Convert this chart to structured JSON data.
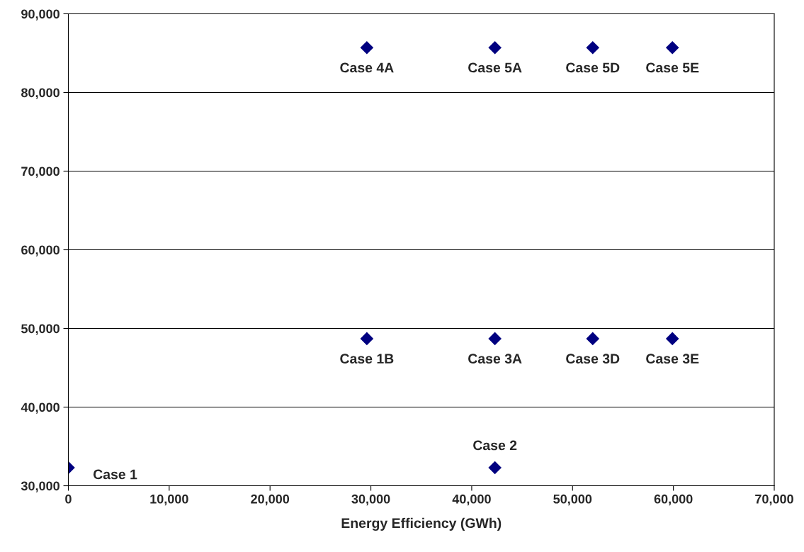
{
  "chart_data": {
    "type": "scatter",
    "xlabel": "Energy Efficiency (GWh)",
    "x": [
      0,
      42300,
      29600,
      42300,
      52000,
      59900,
      29600,
      42300,
      52000,
      59900
    ],
    "series": [
      {
        "color": "#000080",
        "values": [
          32300,
          32300,
          48700,
          48700,
          48700,
          48700,
          85700,
          85700,
          85700,
          85700
        ]
      }
    ],
    "xlim": [
      0,
      70000
    ],
    "xticks": [
      {
        "value": 0,
        "label": "0"
      },
      {
        "value": 10000,
        "label": "10,000"
      },
      {
        "value": 20000,
        "label": "20,000"
      },
      {
        "value": 30000,
        "label": "30,000"
      },
      {
        "value": 40000,
        "label": "40,000"
      },
      {
        "value": 50000,
        "label": "50,000"
      },
      {
        "value": 60000,
        "label": "60,000"
      },
      {
        "value": 70000,
        "label": "70,000"
      }
    ],
    "ylim": [
      30000,
      90000
    ],
    "yticks": [
      {
        "value": 30000,
        "label": "30,000"
      },
      {
        "value": 40000,
        "label": "40,000"
      },
      {
        "value": 50000,
        "label": "50,000"
      },
      {
        "value": 60000,
        "label": "60,000"
      },
      {
        "value": 70000,
        "label": "70,000"
      },
      {
        "value": 80000,
        "label": "80,000"
      },
      {
        "value": 90000,
        "label": "90,000"
      }
    ],
    "grid": "y",
    "marker": "diamond",
    "legend": false,
    "annotations": [
      {
        "text": "Case 1",
        "x": 0,
        "y": 32300
      },
      {
        "text": "Case 2",
        "x": 42300,
        "y": 32300
      },
      {
        "text": "Case 1B",
        "x": 29600,
        "y": 48700
      },
      {
        "text": "Case 3A",
        "x": 42300,
        "y": 48700
      },
      {
        "text": "Case 3D",
        "x": 52000,
        "y": 48700
      },
      {
        "text": "Case 3E",
        "x": 59900,
        "y": 48700
      },
      {
        "text": "Case 4A",
        "x": 29600,
        "y": 85700
      },
      {
        "text": "Case 5A",
        "x": 42300,
        "y": 85700
      },
      {
        "text": "Case 5D",
        "x": 52000,
        "y": 85700
      },
      {
        "text": "Case 5E",
        "x": 59900,
        "y": 85700
      }
    ]
  }
}
